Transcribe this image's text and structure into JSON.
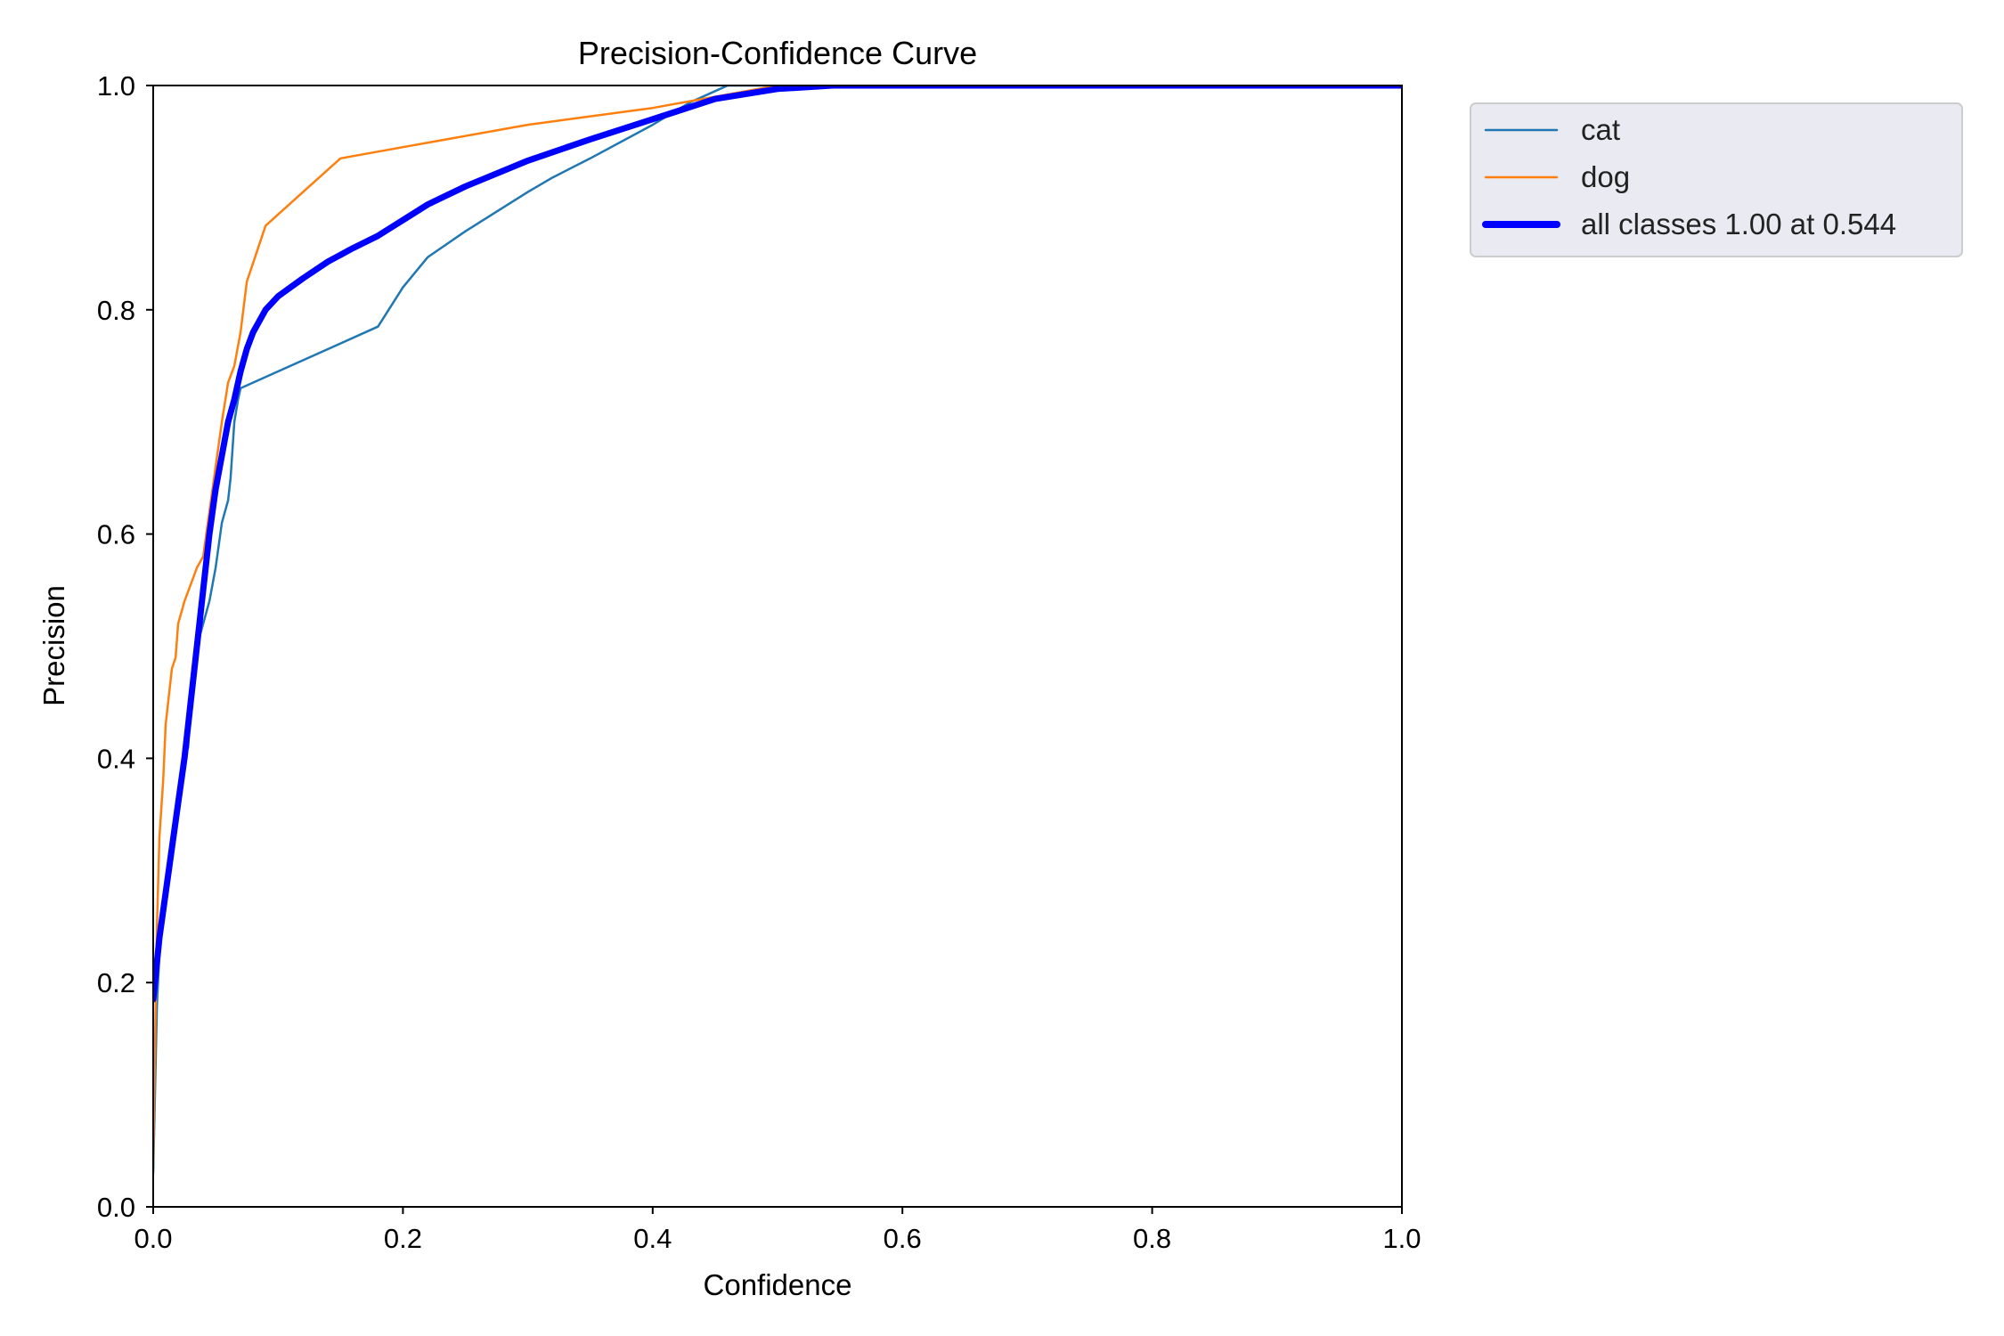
{
  "chart_data": {
    "type": "line",
    "title": "Precision-Confidence Curve",
    "xlabel": "Confidence",
    "ylabel": "Precision",
    "xlim": [
      0.0,
      1.0
    ],
    "ylim": [
      0.0,
      1.0
    ],
    "xticks": [
      "0.0",
      "0.2",
      "0.4",
      "0.6",
      "0.8",
      "1.0"
    ],
    "yticks": [
      "0.0",
      "0.2",
      "0.4",
      "0.6",
      "0.8",
      "1.0"
    ],
    "grid": false,
    "legend_position": "outside-top-right",
    "series": [
      {
        "name": "cat",
        "color": "#1f77b4",
        "points": [
          [
            0.0,
            0.03
          ],
          [
            0.003,
            0.18
          ],
          [
            0.006,
            0.25
          ],
          [
            0.01,
            0.29
          ],
          [
            0.015,
            0.33
          ],
          [
            0.02,
            0.37
          ],
          [
            0.025,
            0.4
          ],
          [
            0.028,
            0.41
          ],
          [
            0.03,
            0.46
          ],
          [
            0.035,
            0.5
          ],
          [
            0.04,
            0.52
          ],
          [
            0.045,
            0.54
          ],
          [
            0.05,
            0.57
          ],
          [
            0.055,
            0.61
          ],
          [
            0.06,
            0.63
          ],
          [
            0.062,
            0.65
          ],
          [
            0.065,
            0.7
          ],
          [
            0.068,
            0.72
          ],
          [
            0.07,
            0.73
          ],
          [
            0.1,
            0.745
          ],
          [
            0.15,
            0.77
          ],
          [
            0.18,
            0.785
          ],
          [
            0.2,
            0.82
          ],
          [
            0.22,
            0.847
          ],
          [
            0.25,
            0.87
          ],
          [
            0.3,
            0.905
          ],
          [
            0.32,
            0.918
          ],
          [
            0.35,
            0.935
          ],
          [
            0.4,
            0.965
          ],
          [
            0.43,
            0.985
          ],
          [
            0.45,
            0.995
          ],
          [
            0.46,
            1.0
          ],
          [
            1.0,
            1.0
          ]
        ]
      },
      {
        "name": "dog",
        "color": "#ff7f0e",
        "points": [
          [
            0.0,
            0.04
          ],
          [
            0.003,
            0.25
          ],
          [
            0.005,
            0.33
          ],
          [
            0.008,
            0.38
          ],
          [
            0.01,
            0.43
          ],
          [
            0.012,
            0.45
          ],
          [
            0.015,
            0.48
          ],
          [
            0.018,
            0.49
          ],
          [
            0.02,
            0.52
          ],
          [
            0.025,
            0.54
          ],
          [
            0.03,
            0.555
          ],
          [
            0.035,
            0.57
          ],
          [
            0.04,
            0.58
          ],
          [
            0.045,
            0.62
          ],
          [
            0.05,
            0.66
          ],
          [
            0.055,
            0.7
          ],
          [
            0.06,
            0.735
          ],
          [
            0.065,
            0.75
          ],
          [
            0.07,
            0.78
          ],
          [
            0.075,
            0.825
          ],
          [
            0.09,
            0.875
          ],
          [
            0.12,
            0.905
          ],
          [
            0.15,
            0.935
          ],
          [
            0.2,
            0.945
          ],
          [
            0.3,
            0.965
          ],
          [
            0.4,
            0.98
          ],
          [
            0.45,
            0.99
          ],
          [
            0.5,
            1.0
          ],
          [
            1.0,
            1.0
          ]
        ]
      },
      {
        "name": "all classes 1.00 at 0.544",
        "color": "#0000ff",
        "bold": true,
        "points": [
          [
            0.0,
            0.185
          ],
          [
            0.005,
            0.24
          ],
          [
            0.01,
            0.28
          ],
          [
            0.015,
            0.32
          ],
          [
            0.02,
            0.36
          ],
          [
            0.025,
            0.4
          ],
          [
            0.03,
            0.45
          ],
          [
            0.035,
            0.5
          ],
          [
            0.04,
            0.55
          ],
          [
            0.045,
            0.6
          ],
          [
            0.05,
            0.64
          ],
          [
            0.055,
            0.67
          ],
          [
            0.06,
            0.7
          ],
          [
            0.065,
            0.72
          ],
          [
            0.07,
            0.745
          ],
          [
            0.075,
            0.765
          ],
          [
            0.08,
            0.78
          ],
          [
            0.09,
            0.8
          ],
          [
            0.1,
            0.812
          ],
          [
            0.12,
            0.828
          ],
          [
            0.14,
            0.843
          ],
          [
            0.16,
            0.855
          ],
          [
            0.18,
            0.866
          ],
          [
            0.2,
            0.88
          ],
          [
            0.22,
            0.894
          ],
          [
            0.25,
            0.91
          ],
          [
            0.3,
            0.933
          ],
          [
            0.35,
            0.952
          ],
          [
            0.4,
            0.97
          ],
          [
            0.45,
            0.988
          ],
          [
            0.5,
            0.997
          ],
          [
            0.544,
            1.0
          ],
          [
            1.0,
            1.0
          ]
        ]
      }
    ]
  }
}
